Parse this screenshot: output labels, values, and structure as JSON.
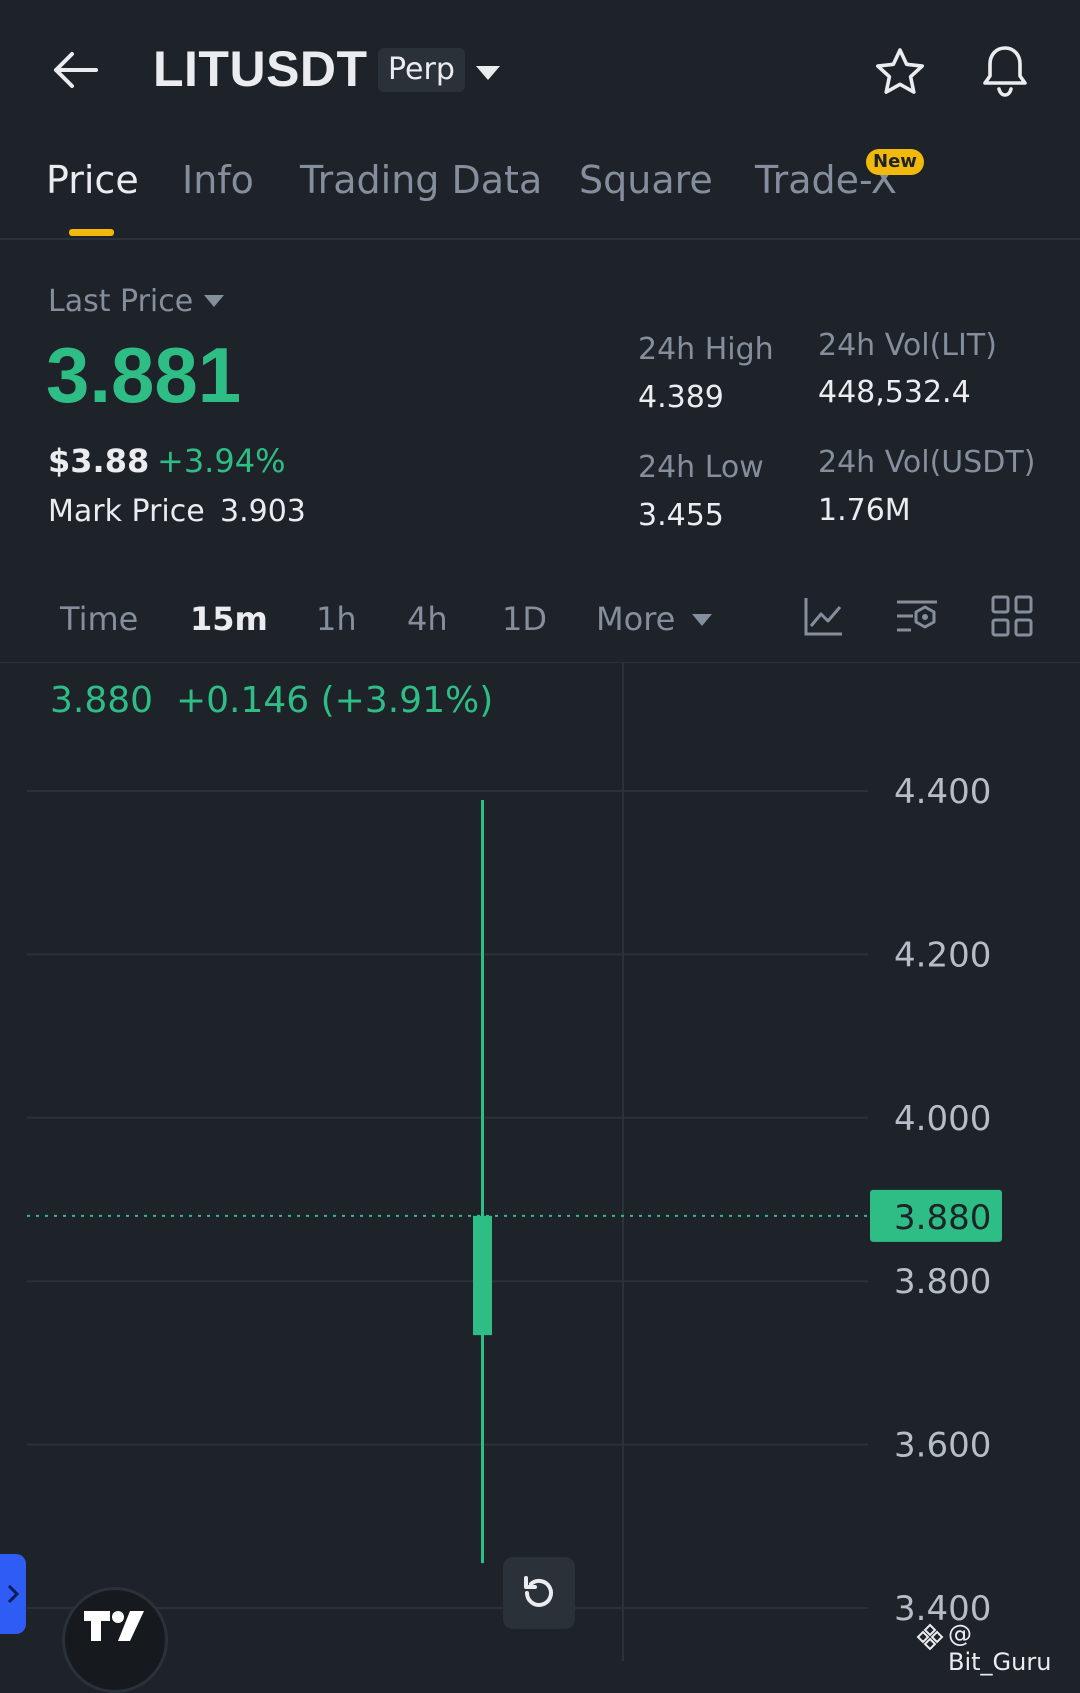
{
  "header": {
    "symbol": "LITUSDT",
    "contract_type": "Perp"
  },
  "tabs": [
    {
      "label": "Price",
      "active": true
    },
    {
      "label": "Info"
    },
    {
      "label": "Trading Data"
    },
    {
      "label": "Square"
    },
    {
      "label": "Trade-X",
      "badge": "New"
    }
  ],
  "price": {
    "selector_label": "Last Price",
    "last": "3.881",
    "usd": "$3.88",
    "change_pct": "+3.94%",
    "mark_label": "Mark Price",
    "mark_value": "3.903"
  },
  "stats": {
    "high_label": "24h High",
    "high_value": "4.389",
    "low_label": "24h Low",
    "low_value": "3.455",
    "vol_base_label": "24h Vol(LIT)",
    "vol_base_value": "448,532.4",
    "vol_quote_label": "24h Vol(USDT)",
    "vol_quote_value": "1.76M"
  },
  "intervals": {
    "time": "Time",
    "m15": "15m",
    "h1": "1h",
    "h4": "4h",
    "d1": "1D",
    "more": "More",
    "selected": "15m"
  },
  "chart": {
    "ohlc_close": "3.880",
    "ohlc_change": "+0.146 (+3.91%)",
    "current_price_label": "3.880",
    "up_color": "#2ebd85"
  },
  "chart_data": {
    "type": "candlestick",
    "y_ticks": [
      "4.400",
      "4.200",
      "4.000",
      "3.800",
      "3.600",
      "3.400"
    ],
    "ylim": [
      3.38,
      4.42
    ],
    "candles": [
      {
        "open": 3.734,
        "high": 4.389,
        "low": 3.455,
        "close": 3.88
      }
    ],
    "current_price": 3.88,
    "grid": true
  },
  "watermark": "@ Bit_Guru",
  "icons": [
    "back-arrow-icon",
    "dropdown-caret-icon",
    "star-icon",
    "bell-icon",
    "indicator-chart-icon",
    "chart-settings-icon",
    "grid-layout-icon",
    "reset-icon",
    "tradingview-logo-icon",
    "expand-chevron-icon"
  ]
}
